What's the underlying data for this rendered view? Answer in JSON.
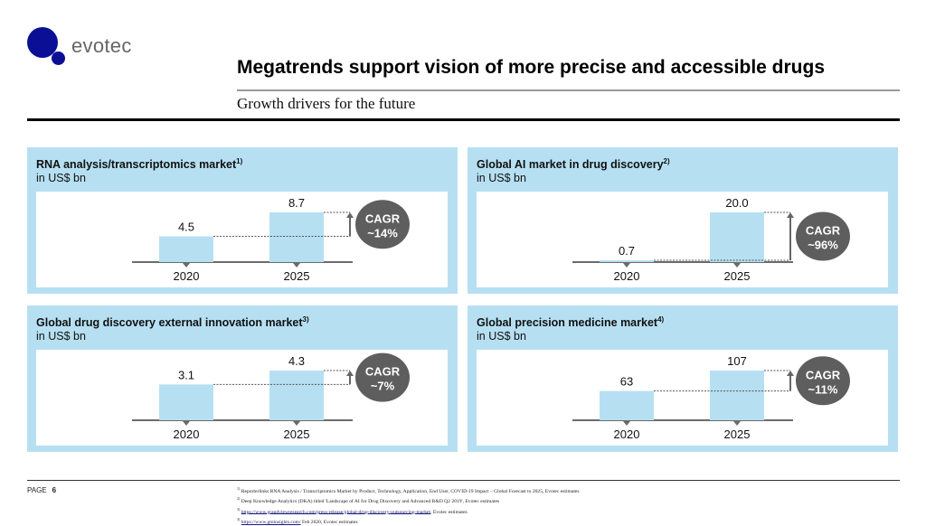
{
  "logo": {
    "wordmark": "evotec",
    "color": "#0b0f96"
  },
  "header": {
    "title": "Megatrends support vision of more precise and accessible drugs",
    "subtitle": "Growth drivers for the future"
  },
  "colors": {
    "panel_bg": "#b6e0f2",
    "bar": "#b6e0f2",
    "bubble": "#5e5e5e",
    "axis": "#6b6b6b"
  },
  "chart_data": [
    {
      "type": "bar",
      "title": "RNA analysis/transcriptomics market",
      "footnote_ref": "1)",
      "ylabel": "in US$ bn",
      "categories": [
        "2020",
        "2025"
      ],
      "values": [
        4.5,
        8.7
      ],
      "value_labels": [
        "4.5",
        "8.7"
      ],
      "annotation": {
        "line1": "CAGR",
        "line2": "~14%"
      }
    },
    {
      "type": "bar",
      "title": "Global AI market in drug discovery",
      "footnote_ref": "2)",
      "ylabel": "in US$ bn",
      "categories": [
        "2020",
        "2025"
      ],
      "values": [
        0.7,
        20.0
      ],
      "value_labels": [
        "0.7",
        "20.0"
      ],
      "annotation": {
        "line1": "CAGR",
        "line2": "~96%"
      }
    },
    {
      "type": "bar",
      "title": "Global drug discovery external innovation market",
      "footnote_ref": "3)",
      "ylabel": "in US$ bn",
      "categories": [
        "2020",
        "2025"
      ],
      "values": [
        3.1,
        4.3
      ],
      "value_labels": [
        "3.1",
        "4.3"
      ],
      "annotation": {
        "line1": "CAGR",
        "line2": "~7%"
      }
    },
    {
      "type": "bar",
      "title": "Global precision medicine market",
      "footnote_ref": "4)",
      "ylabel": "in US$ bn",
      "categories": [
        "2020",
        "2025"
      ],
      "values": [
        63,
        107
      ],
      "value_labels": [
        "63",
        "107"
      ],
      "annotation": {
        "line1": "CAGR",
        "line2": "~11%"
      }
    }
  ],
  "footer": {
    "page_label": "PAGE",
    "page_number": "6",
    "notes": [
      {
        "ref": "1)",
        "text": "Reporterlinks RNA Analysis / Transcriptomics Market by Product, Technology, Application, End User, COVID-19 Impact – Global Forecast to 2025, Evotec estimates",
        "link": ""
      },
      {
        "ref": "2)",
        "text": "Deep Knowledge Analytics (DKA) titled 'Landscape of AI for Drug Discovery and Advanced R&D Q2 2019', Evotec estimates",
        "link": ""
      },
      {
        "ref": "3)",
        "link": "https://www.grandviewresearch.com/press-release/global-drug-discovery-outsourcing-market",
        "text": ", Evotec estimates"
      },
      {
        "ref": "4)",
        "link": "https://www.gminsights.com/",
        "text": " Feb 2020, Evotec estimates"
      }
    ]
  }
}
